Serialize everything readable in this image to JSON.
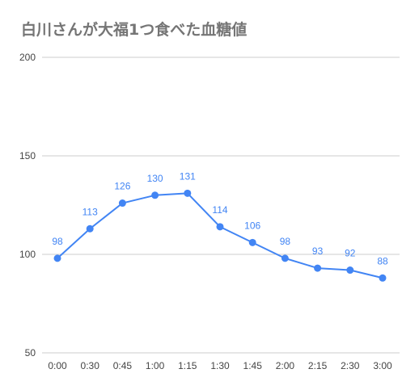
{
  "chart_data": {
    "type": "line",
    "title": "白川さんが大福1つ食べた血糖値",
    "xlabel": "",
    "ylabel": "",
    "categories": [
      "0:00",
      "0:30",
      "0:45",
      "1:00",
      "1:15",
      "1:30",
      "1:45",
      "2:00",
      "2:15",
      "2:30",
      "3:00"
    ],
    "series": [
      {
        "values": [
          98,
          113,
          126,
          130,
          131,
          114,
          106,
          98,
          93,
          92,
          88
        ],
        "color": "#4285f4"
      }
    ],
    "ylim": [
      50,
      200
    ],
    "yticks": [
      50,
      100,
      150,
      200
    ],
    "grid": true,
    "data_labels": true,
    "legend": "none"
  }
}
